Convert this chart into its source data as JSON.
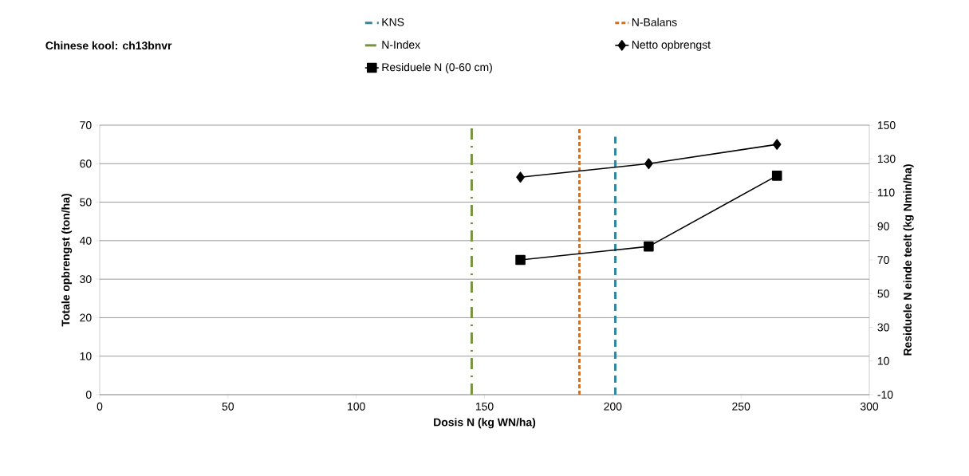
{
  "chart_data": {
    "type": "line",
    "title": "Chinese kool: ch13bnvr",
    "xlabel": "Dosis N (kg WN/ha)",
    "ylabel": "Totale opbrengst (ton/ha)",
    "y2label": "Residuele N einde teelt (kg Nmin/ha)",
    "xlim": [
      0,
      300
    ],
    "xticks": [
      0,
      50,
      100,
      150,
      200,
      250,
      300
    ],
    "ylim": [
      0,
      70
    ],
    "yticks": [
      0,
      10,
      20,
      30,
      40,
      50,
      60,
      70
    ],
    "y2lim": [
      -10,
      150
    ],
    "y2ticks": [
      -10,
      10,
      30,
      50,
      70,
      90,
      110,
      130,
      150
    ],
    "grid": "y",
    "legend": "top",
    "series": [
      {
        "name": "KNS",
        "color": "#31859c",
        "x": [
          201,
          201
        ],
        "values": [
          0,
          67
        ],
        "line_style": "dashed",
        "marker": "none"
      },
      {
        "name": "N-Balans",
        "color": "#e46c0a",
        "x": [
          187,
          187
        ],
        "values": [
          0,
          69
        ],
        "line_style": "dotted",
        "marker": "none"
      },
      {
        "name": "N-Index",
        "color": "#77933c",
        "x": [
          145,
          145
        ],
        "values": [
          0,
          70
        ],
        "line_style": "dashdot",
        "marker": "none"
      },
      {
        "name": "Netto opbrengst",
        "color": "#000000",
        "x": [
          164,
          214,
          264
        ],
        "values": [
          56.5,
          60,
          65
        ],
        "line_style": "solid",
        "marker": "diamond"
      },
      {
        "name": "Residuele N (0-60 cm)",
        "color": "#000000",
        "x": [
          164,
          214,
          264
        ],
        "values": [
          70,
          78,
          120
        ],
        "line_style": "solid",
        "marker": "square",
        "axis": "y2"
      }
    ]
  }
}
